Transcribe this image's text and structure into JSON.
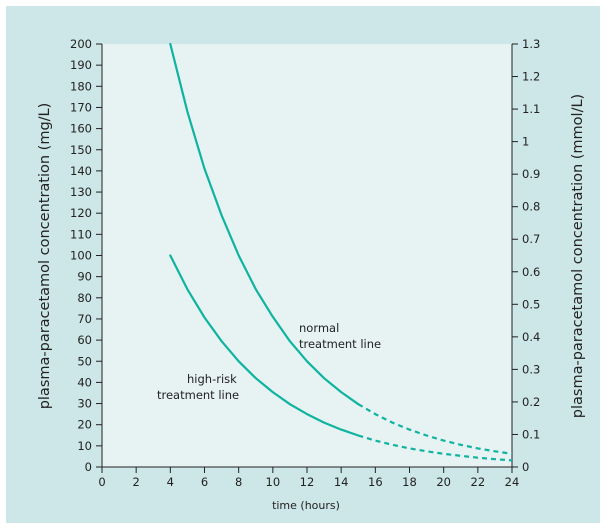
{
  "chart_data": {
    "type": "line",
    "xlabel": "time (hours)",
    "ylabel_left": "plasma-paracetamol concentration (mg/L)",
    "ylabel_right": "plasma-paracetamol concentration (mmol/L)",
    "xlim": [
      0,
      24
    ],
    "ylim_left": [
      0,
      200
    ],
    "ylim_right": [
      0,
      1.3
    ],
    "x_ticks": [
      "0",
      "2",
      "4",
      "6",
      "8",
      "10",
      "12",
      "14",
      "16",
      "18",
      "20",
      "22",
      "24"
    ],
    "y_ticks_left": [
      "0",
      "10",
      "20",
      "30",
      "40",
      "50",
      "60",
      "70",
      "80",
      "90",
      "100",
      "110",
      "120",
      "130",
      "140",
      "150",
      "160",
      "170",
      "180",
      "190",
      "200"
    ],
    "y_ticks_right": [
      "0",
      "0.1",
      "0.2",
      "0.3",
      "0.4",
      "0.5",
      "0.6",
      "0.7",
      "0.8",
      "0.9",
      "1",
      "1.1",
      "1.2",
      "1.3"
    ],
    "grid": false,
    "series": [
      {
        "name": "normal treatment line",
        "x": [
          4,
          5,
          6,
          7,
          8,
          9,
          10,
          11,
          12,
          13,
          14,
          15,
          16,
          17,
          18,
          19,
          20,
          21,
          22,
          23,
          24
        ],
        "y": [
          200,
          168,
          141,
          119,
          100,
          84,
          71,
          59.5,
          50,
          42,
          35.4,
          29.7,
          25,
          21,
          17.7,
          14.9,
          12.5,
          10.5,
          8.8,
          7.4,
          6.25
        ],
        "solid_until_x": 15,
        "color": "#0fb3a0"
      },
      {
        "name": "high-risk treatment line",
        "x": [
          4,
          5,
          6,
          7,
          8,
          9,
          10,
          11,
          12,
          13,
          14,
          15,
          16,
          17,
          18,
          19,
          20,
          21,
          22,
          23,
          24
        ],
        "y": [
          100,
          84,
          70.7,
          59.5,
          50,
          42,
          35.4,
          29.7,
          25,
          21,
          17.7,
          14.9,
          12.5,
          10.5,
          8.8,
          7.4,
          6.25,
          5.3,
          4.4,
          3.7,
          3.1
        ],
        "solid_until_x": 15,
        "color": "#0fb3a0"
      }
    ],
    "annotations": {
      "normal_line1": "normal",
      "normal_line2": "treatment line",
      "highrisk_line1": "high-risk",
      "highrisk_line2": "treatment line"
    },
    "colors": {
      "frame_background": "#cde6e7",
      "plot_background": "#e7f3f3",
      "curve": "#0fb3a0"
    }
  }
}
